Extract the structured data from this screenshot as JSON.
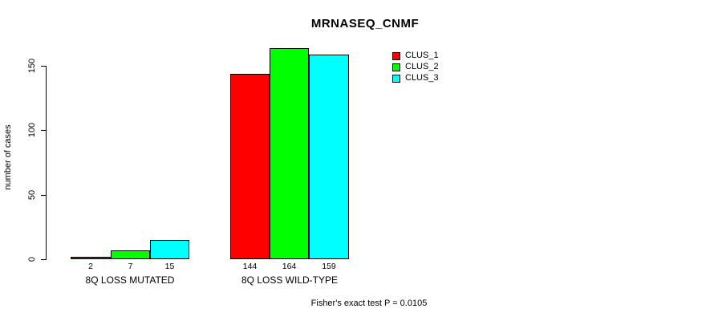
{
  "chart_data": {
    "type": "bar",
    "title": "MRNASEQ_CNMF",
    "ylabel": "number of cases",
    "xlabel": "",
    "categories": [
      "8Q LOSS MUTATED",
      "8Q LOSS WILD-TYPE"
    ],
    "series": [
      {
        "name": "CLUS_1",
        "color": "#ff0000",
        "values": [
          2,
          144
        ]
      },
      {
        "name": "CLUS_2",
        "color": "#00ff00",
        "values": [
          7,
          164
        ]
      },
      {
        "name": "CLUS_3",
        "color": "#00ffff",
        "values": [
          15,
          159
        ]
      }
    ],
    "yticks": [
      0,
      50,
      100,
      150
    ],
    "ylim": [
      0,
      165
    ],
    "grid": false,
    "bar_value_labels": true,
    "legend_position": "right-inside",
    "annotation": "Fisher's exact test P = 0.0105"
  },
  "colors": {
    "background": "#ffffff",
    "axis": "#000000",
    "text": "#000000",
    "bar_border": "#000000"
  }
}
